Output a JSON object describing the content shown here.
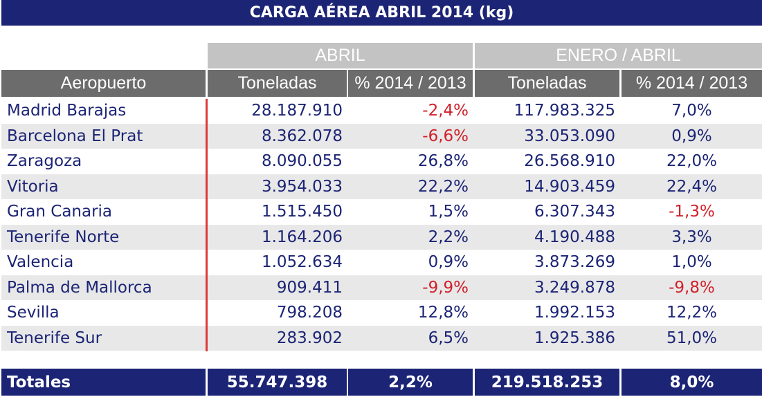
{
  "table": {
    "title": "CARGA AÉREA ABRIL 2014 (kg)",
    "groups": [
      "ABRIL",
      "ENERO / ABRIL"
    ],
    "headers": [
      "Aeropuerto",
      "Toneladas",
      "% 2014 / 2013",
      "Toneladas",
      "% 2014 / 2013"
    ],
    "rows": [
      [
        "Madrid Barajas",
        "28.187.910",
        "-2,4%",
        "117.983.325",
        "7,0%"
      ],
      [
        "Barcelona El Prat",
        "8.362.078",
        "-6,6%",
        "33.053.090",
        "0,9%"
      ],
      [
        "Zaragoza",
        "8.090.055",
        "26,8%",
        "26.568.910",
        "22,0%"
      ],
      [
        "Vitoria",
        "3.954.033",
        "22,2%",
        "14.903.459",
        "22,4%"
      ],
      [
        "Gran Canaria",
        "1.515.450",
        "1,5%",
        "6.307.343",
        "-1,3%"
      ],
      [
        "Tenerife Norte",
        "1.164.206",
        "2,2%",
        "4.190.488",
        "3,3%"
      ],
      [
        "Valencia",
        "1.052.634",
        "0,9%",
        "3.873.269",
        "1,0%"
      ],
      [
        "Palma de Mallorca",
        "909.411",
        "-9,9%",
        "3.249.878",
        "-9,8%"
      ],
      [
        "Sevilla",
        "798.208",
        "12,8%",
        "1.992.153",
        "12,2%"
      ],
      [
        "Tenerife Sur",
        "283.902",
        "6,5%",
        "1.925.386",
        "51,0%"
      ]
    ],
    "totals": [
      "Totales",
      "55.747.398",
      "2,2%",
      "219.518.253",
      "8,0%"
    ]
  }
}
